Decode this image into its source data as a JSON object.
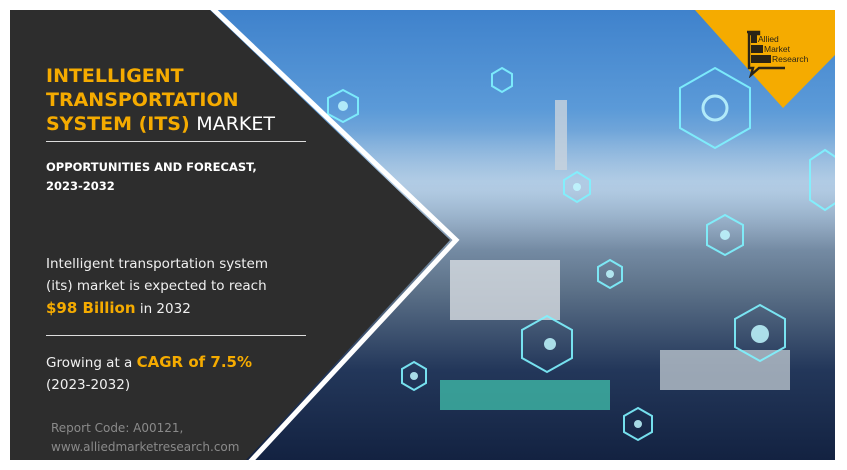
{
  "title": {
    "highlight_lines": [
      "INTELLIGENT",
      "TRANSPORTATION",
      "SYSTEM (ITS)"
    ],
    "suffix": "MARKET"
  },
  "subtitle": {
    "line1": "OPPORTUNITIES AND FORECAST,",
    "line2": "2023-2032"
  },
  "forecast": {
    "line1": "Intelligent transportation system",
    "line2": "(its) market is expected to reach",
    "value": "$98 Billion",
    "year": "in 2032"
  },
  "growth": {
    "prefix": "Growing at a",
    "cagr": "CAGR of 7.5%",
    "period": "(2023-2032)"
  },
  "footer": {
    "report_code": "Report Code: A00121,",
    "website": "www.alliedmarketresearch.com"
  },
  "logo": {
    "text": [
      "Allied",
      "Market",
      "Research"
    ]
  },
  "colors": {
    "accent": "#f5ab00",
    "panel": "#2d2d2d",
    "icon_glow": "#6ff0ff"
  }
}
